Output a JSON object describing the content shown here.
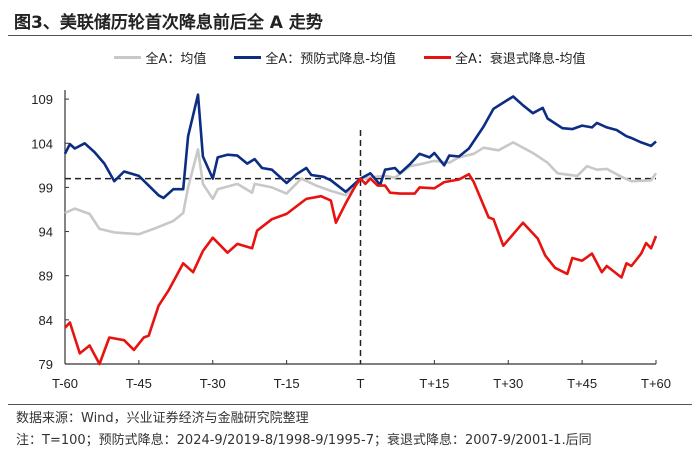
{
  "title": "图3、美联储历轮首次降息前后全 A 走势",
  "footer": {
    "source": "数据来源：Wind，兴业证券经济与金融研究院整理",
    "note": "注：T=100；预防式降息：2024-9/2019-8/1998-9/1995-7；衰退式降息：2007-9/2001-1.后同"
  },
  "chart_data": {
    "type": "line",
    "title": "",
    "xlabel": "",
    "ylabel": "",
    "x_ticks": [
      "T-60",
      "T-45",
      "T-30",
      "T-15",
      "T",
      "T+15",
      "T+30",
      "T+45",
      "T+60"
    ],
    "x_range": [
      -60,
      60
    ],
    "y_ticks": [
      79,
      84,
      89,
      94,
      99,
      104,
      109
    ],
    "ylim": [
      79,
      110.5
    ],
    "reference_line_y": 100,
    "reference_line_x": 0,
    "legend_position": "top",
    "series": [
      {
        "name": "全A：均值",
        "color": "#c8c8c8",
        "points": [
          [
            -60,
            96.1
          ],
          [
            -58,
            96.6
          ],
          [
            -55,
            96.0
          ],
          [
            -53,
            94.3
          ],
          [
            -50,
            93.9
          ],
          [
            -45,
            93.7
          ],
          [
            -42,
            94.3
          ],
          [
            -38,
            95.2
          ],
          [
            -36,
            96.1
          ],
          [
            -35,
            99
          ],
          [
            -33,
            103.3
          ],
          [
            -32,
            99.4
          ],
          [
            -30,
            97.7
          ],
          [
            -29,
            98.8
          ],
          [
            -25,
            99.4
          ],
          [
            -22,
            98.4
          ],
          [
            -21.5,
            99.4
          ],
          [
            -18,
            99.0
          ],
          [
            -15,
            98.3
          ],
          [
            -12,
            100
          ],
          [
            -9,
            99.2
          ],
          [
            -6,
            98.6
          ],
          [
            -3,
            98.1
          ],
          [
            0,
            100
          ],
          [
            3,
            100.2
          ],
          [
            5,
            100.3
          ],
          [
            7,
            100.1
          ],
          [
            10,
            101.4
          ],
          [
            12,
            101.6
          ],
          [
            15,
            102
          ],
          [
            18,
            101.8
          ],
          [
            20,
            102.4
          ],
          [
            23,
            102.8
          ],
          [
            25,
            103.5
          ],
          [
            28,
            103.2
          ],
          [
            31,
            104.1
          ],
          [
            35,
            102.9
          ],
          [
            38,
            101.8
          ],
          [
            40,
            100.6
          ],
          [
            44,
            100.3
          ],
          [
            46,
            101.4
          ],
          [
            48,
            101.0
          ],
          [
            50,
            101.1
          ],
          [
            53,
            100.2
          ],
          [
            55,
            99.7
          ],
          [
            59,
            99.8
          ],
          [
            60,
            100.6
          ]
        ]
      },
      {
        "name": "全A：预防式降息-均值",
        "color": "#0c2d83",
        "points": [
          [
            -60,
            102.8
          ],
          [
            -59,
            103.9
          ],
          [
            -58,
            103.4
          ],
          [
            -56,
            104
          ],
          [
            -54,
            103.0
          ],
          [
            -52,
            101.7
          ],
          [
            -50,
            99.7
          ],
          [
            -48,
            100.8
          ],
          [
            -45,
            100.3
          ],
          [
            -43,
            99.2
          ],
          [
            -41,
            98.1
          ],
          [
            -40,
            97.8
          ],
          [
            -38,
            98.8
          ],
          [
            -36,
            98.8
          ],
          [
            -35,
            104.8
          ],
          [
            -33,
            109.5
          ],
          [
            -32,
            102.5
          ],
          [
            -30,
            100
          ],
          [
            -29,
            102.4
          ],
          [
            -27,
            102.7
          ],
          [
            -25,
            102.6
          ],
          [
            -23,
            101.7
          ],
          [
            -21.5,
            102.2
          ],
          [
            -20,
            101.2
          ],
          [
            -18,
            101.0
          ],
          [
            -15,
            99.5
          ],
          [
            -13,
            100.5
          ],
          [
            -11,
            101.2
          ],
          [
            -10,
            100.4
          ],
          [
            -7.5,
            100.2
          ],
          [
            -6,
            99.8
          ],
          [
            -3,
            98.5
          ],
          [
            0,
            100
          ],
          [
            2,
            100.6
          ],
          [
            4,
            99.3
          ],
          [
            5,
            101
          ],
          [
            7,
            101.2
          ],
          [
            8,
            100.6
          ],
          [
            10,
            101.6
          ],
          [
            12,
            102.8
          ],
          [
            14,
            102.4
          ],
          [
            15,
            102.9
          ],
          [
            17,
            101.5
          ],
          [
            18,
            102.6
          ],
          [
            20,
            102.5
          ],
          [
            22,
            103.4
          ],
          [
            25,
            105.9
          ],
          [
            27,
            107.9
          ],
          [
            29,
            108.6
          ],
          [
            31,
            109.3
          ],
          [
            33,
            108.3
          ],
          [
            35,
            107.4
          ],
          [
            37,
            108
          ],
          [
            38,
            106.8
          ],
          [
            41,
            105.7
          ],
          [
            43,
            105.6
          ],
          [
            45,
            106.0
          ],
          [
            47,
            105.8
          ],
          [
            48,
            106.3
          ],
          [
            50,
            105.8
          ],
          [
            52,
            105.5
          ],
          [
            54,
            104.8
          ],
          [
            55,
            104.6
          ],
          [
            57,
            104.1
          ],
          [
            59,
            103.7
          ],
          [
            60,
            104.2
          ]
        ]
      },
      {
        "name": "全A：衰退式降息-均值",
        "color": "#e8120f",
        "points": [
          [
            -60,
            83.1
          ],
          [
            -59,
            83.7
          ],
          [
            -57,
            80.2
          ],
          [
            -55,
            81.1
          ],
          [
            -53,
            79
          ],
          [
            -51,
            82
          ],
          [
            -48,
            81.7
          ],
          [
            -46,
            80.6
          ],
          [
            -44,
            82
          ],
          [
            -43,
            82.2
          ],
          [
            -41,
            85.6
          ],
          [
            -39,
            87.3
          ],
          [
            -36,
            90.4
          ],
          [
            -34,
            89.4
          ],
          [
            -32,
            91.8
          ],
          [
            -30,
            93.3
          ],
          [
            -27,
            91.6
          ],
          [
            -25,
            92.6
          ],
          [
            -22,
            92.1
          ],
          [
            -21,
            94.1
          ],
          [
            -18,
            95.4
          ],
          [
            -15,
            96.0
          ],
          [
            -11,
            97.7
          ],
          [
            -8,
            98.0
          ],
          [
            -6,
            97.5
          ],
          [
            -5,
            95.0
          ],
          [
            -3,
            97.2
          ],
          [
            -1,
            99.2
          ],
          [
            0,
            100
          ],
          [
            1,
            99.4
          ],
          [
            2,
            100
          ],
          [
            3.5,
            99.2
          ],
          [
            5,
            99.2
          ],
          [
            6,
            98.4
          ],
          [
            8,
            98.3
          ],
          [
            11,
            98.3
          ],
          [
            12,
            99.0
          ],
          [
            15,
            98.9
          ],
          [
            17,
            99.6
          ],
          [
            20,
            99.9
          ],
          [
            22,
            100.5
          ],
          [
            23,
            99.6
          ],
          [
            26,
            95.6
          ],
          [
            27,
            95.4
          ],
          [
            29,
            92.4
          ],
          [
            33,
            95.0
          ],
          [
            36,
            93.2
          ],
          [
            37.5,
            91.3
          ],
          [
            39.5,
            89.9
          ],
          [
            42,
            89.2
          ],
          [
            43,
            91.0
          ],
          [
            45,
            90.7
          ],
          [
            47,
            91.5
          ],
          [
            49,
            89.4
          ],
          [
            50,
            90.1
          ],
          [
            53,
            88.8
          ],
          [
            54,
            90.4
          ],
          [
            55,
            90.1
          ],
          [
            57,
            91.5
          ],
          [
            58,
            92.7
          ],
          [
            59,
            92.1
          ],
          [
            60,
            93.5
          ]
        ]
      }
    ]
  }
}
